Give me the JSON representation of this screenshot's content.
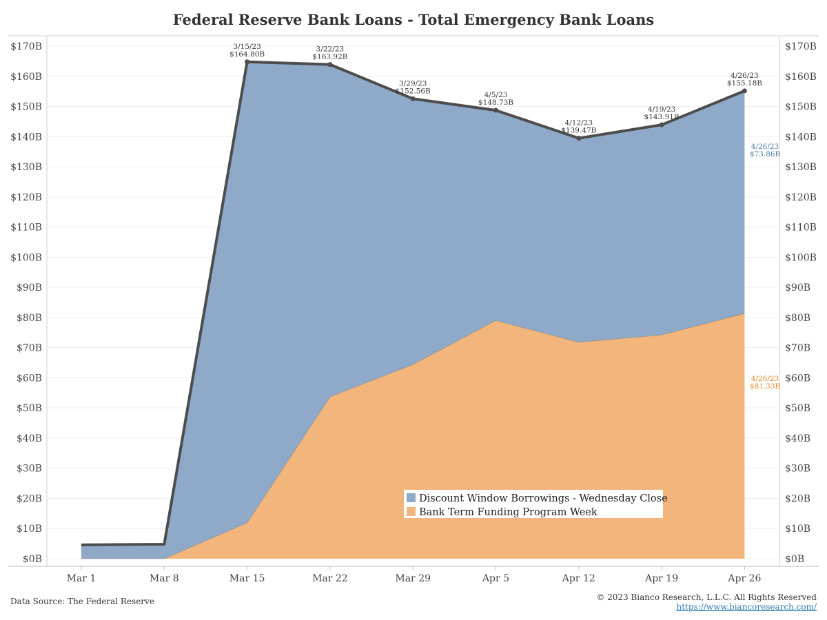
{
  "title": "Federal Reserve Bank Loans - Total Emergency Bank Loans",
  "source": "Data Source: The Federal Reserve",
  "copyright": "© 2023 Bianco Research, L.L.C. All Rights Reserved",
  "url": "https://www.biancoresearch.com/",
  "colors": {
    "discount": "#8faac8",
    "btfp": "#f2b57b",
    "total": "#4d4d4d",
    "discount_label": "#4e79a7",
    "btfp_label": "#e8892f"
  },
  "chart_data": {
    "type": "area",
    "categories": [
      "Mar 1",
      "Mar 8",
      "Mar 15",
      "Mar 22",
      "Mar 29",
      "Apr 5",
      "Apr 12",
      "Apr 19",
      "Apr 26"
    ],
    "ylim": [
      0,
      170
    ],
    "yticks": [
      "$0B",
      "$10B",
      "$20B",
      "$30B",
      "$40B",
      "$50B",
      "$60B",
      "$70B",
      "$80B",
      "$90B",
      "$100B",
      "$110B",
      "$120B",
      "$130B",
      "$140B",
      "$150B",
      "$160B",
      "$170B"
    ],
    "series": [
      {
        "name": "Bank Term Funding Program Week",
        "values": [
          0,
          0,
          11.9,
          53.7,
          64.4,
          79.0,
          71.8,
          74.2,
          81.33
        ]
      },
      {
        "name": "Discount Window Borrowings - Wednesday Close",
        "values": [
          4.58,
          4.8,
          152.9,
          110.2,
          88.2,
          69.7,
          67.7,
          69.7,
          73.86
        ]
      }
    ],
    "total": [
      4.58,
      4.8,
      164.8,
      163.92,
      152.56,
      148.73,
      139.47,
      143.91,
      155.18
    ],
    "total_labels": [
      {
        "index": 2,
        "date": "3/15/23",
        "value": "$164.80B"
      },
      {
        "index": 3,
        "date": "3/22/23",
        "value": "$163.92B"
      },
      {
        "index": 4,
        "date": "3/29/23",
        "value": "$152.56B"
      },
      {
        "index": 5,
        "date": "4/5/23",
        "value": "$148.73B"
      },
      {
        "index": 6,
        "date": "4/12/23",
        "value": "$139.47B"
      },
      {
        "index": 7,
        "date": "4/19/23",
        "value": "$143.91B"
      },
      {
        "index": 8,
        "date": "4/26/23",
        "value": "$155.18B"
      }
    ],
    "end_labels": {
      "discount": {
        "date": "4/26/23",
        "value": "$73.86B"
      },
      "btfp": {
        "date": "4/26/23",
        "value": "$81.33B"
      }
    },
    "legend": [
      {
        "name": "Discount Window Borrowings - Wednesday Close",
        "color": "#8faac8"
      },
      {
        "name": "Bank Term Funding Program Week",
        "color": "#f2b57b"
      }
    ]
  }
}
